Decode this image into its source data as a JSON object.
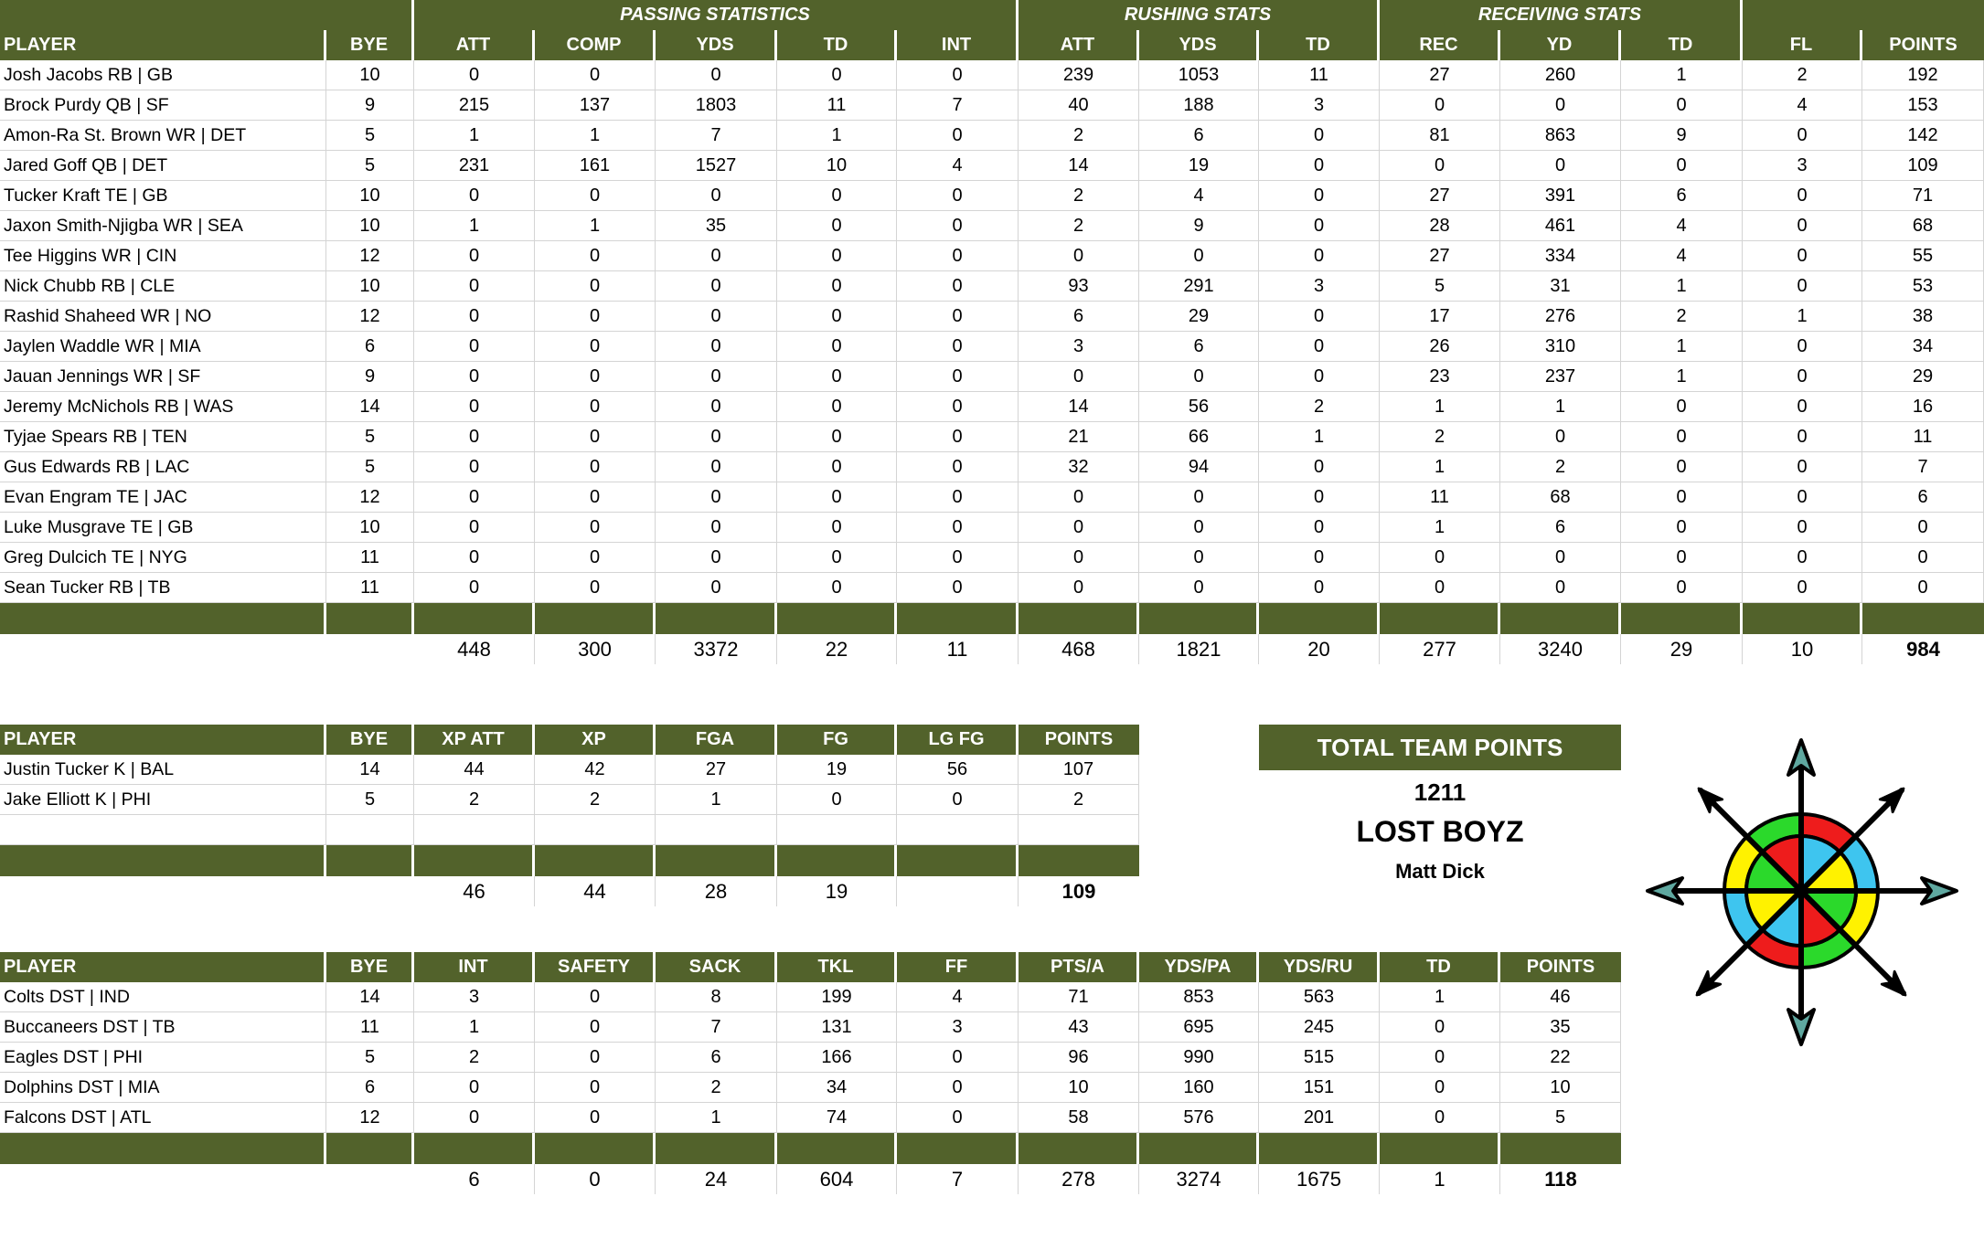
{
  "offense": {
    "group_headers": {
      "passing": "PASSING STATISTICS",
      "rushing": "RUSHING STATS",
      "receiving": "RECEIVING STATS"
    },
    "columns": [
      "PLAYER",
      "BYE",
      "ATT",
      "COMP",
      "YDS",
      "TD",
      "INT",
      "ATT",
      "YDS",
      "TD",
      "REC",
      "YD",
      "TD",
      "FL",
      "POINTS"
    ],
    "rows": [
      [
        "Josh Jacobs RB | GB",
        "10",
        "0",
        "0",
        "0",
        "0",
        "0",
        "239",
        "1053",
        "11",
        "27",
        "260",
        "1",
        "2",
        "192"
      ],
      [
        "Brock Purdy QB | SF",
        "9",
        "215",
        "137",
        "1803",
        "11",
        "7",
        "40",
        "188",
        "3",
        "0",
        "0",
        "0",
        "4",
        "153"
      ],
      [
        "Amon-Ra St. Brown WR | DET",
        "5",
        "1",
        "1",
        "7",
        "1",
        "0",
        "2",
        "6",
        "0",
        "81",
        "863",
        "9",
        "0",
        "142"
      ],
      [
        "Jared Goff QB | DET",
        "5",
        "231",
        "161",
        "1527",
        "10",
        "4",
        "14",
        "19",
        "0",
        "0",
        "0",
        "0",
        "3",
        "109"
      ],
      [
        "Tucker Kraft TE | GB",
        "10",
        "0",
        "0",
        "0",
        "0",
        "0",
        "2",
        "4",
        "0",
        "27",
        "391",
        "6",
        "0",
        "71"
      ],
      [
        "Jaxon Smith-Njigba WR | SEA",
        "10",
        "1",
        "1",
        "35",
        "0",
        "0",
        "2",
        "9",
        "0",
        "28",
        "461",
        "4",
        "0",
        "68"
      ],
      [
        "Tee Higgins WR | CIN",
        "12",
        "0",
        "0",
        "0",
        "0",
        "0",
        "0",
        "0",
        "0",
        "27",
        "334",
        "4",
        "0",
        "55"
      ],
      [
        "Nick Chubb RB | CLE",
        "10",
        "0",
        "0",
        "0",
        "0",
        "0",
        "93",
        "291",
        "3",
        "5",
        "31",
        "1",
        "0",
        "53"
      ],
      [
        "Rashid Shaheed WR | NO",
        "12",
        "0",
        "0",
        "0",
        "0",
        "0",
        "6",
        "29",
        "0",
        "17",
        "276",
        "2",
        "1",
        "38"
      ],
      [
        "Jaylen Waddle WR | MIA",
        "6",
        "0",
        "0",
        "0",
        "0",
        "0",
        "3",
        "6",
        "0",
        "26",
        "310",
        "1",
        "0",
        "34"
      ],
      [
        "Jauan Jennings WR | SF",
        "9",
        "0",
        "0",
        "0",
        "0",
        "0",
        "0",
        "0",
        "0",
        "23",
        "237",
        "1",
        "0",
        "29"
      ],
      [
        "Jeremy McNichols RB | WAS",
        "14",
        "0",
        "0",
        "0",
        "0",
        "0",
        "14",
        "56",
        "2",
        "1",
        "1",
        "0",
        "0",
        "16"
      ],
      [
        "Tyjae Spears RB | TEN",
        "5",
        "0",
        "0",
        "0",
        "0",
        "0",
        "21",
        "66",
        "1",
        "2",
        "0",
        "0",
        "0",
        "11"
      ],
      [
        "Gus Edwards RB | LAC",
        "5",
        "0",
        "0",
        "0",
        "0",
        "0",
        "32",
        "94",
        "0",
        "1",
        "2",
        "0",
        "0",
        "7"
      ],
      [
        "Evan Engram TE | JAC",
        "12",
        "0",
        "0",
        "0",
        "0",
        "0",
        "0",
        "0",
        "0",
        "11",
        "68",
        "0",
        "0",
        "6"
      ],
      [
        "Luke Musgrave TE | GB",
        "10",
        "0",
        "0",
        "0",
        "0",
        "0",
        "0",
        "0",
        "0",
        "1",
        "6",
        "0",
        "0",
        "0"
      ],
      [
        "Greg Dulcich TE | NYG",
        "11",
        "0",
        "0",
        "0",
        "0",
        "0",
        "0",
        "0",
        "0",
        "0",
        "0",
        "0",
        "0",
        "0"
      ],
      [
        "Sean Tucker RB | TB",
        "11",
        "0",
        "0",
        "0",
        "0",
        "0",
        "0",
        "0",
        "0",
        "0",
        "0",
        "0",
        "0",
        "0"
      ]
    ],
    "totals": [
      "",
      "",
      "448",
      "300",
      "3372",
      "22",
      "11",
      "468",
      "1821",
      "20",
      "277",
      "3240",
      "29",
      "10",
      "984"
    ]
  },
  "kickers": {
    "columns": [
      "PLAYER",
      "BYE",
      "XP ATT",
      "XP",
      "FGA",
      "FG",
      "LG FG",
      "POINTS"
    ],
    "rows": [
      [
        "Justin Tucker K | BAL",
        "14",
        "44",
        "42",
        "27",
        "19",
        "56",
        "107"
      ],
      [
        "Jake Elliott K | PHI",
        "5",
        "2",
        "2",
        "1",
        "0",
        "0",
        "2"
      ],
      [
        "",
        "",
        "",
        "",
        "",
        "",
        "",
        ""
      ]
    ],
    "totals": [
      "",
      "",
      "46",
      "44",
      "28",
      "19",
      "",
      "109"
    ]
  },
  "defense": {
    "columns": [
      "PLAYER",
      "BYE",
      "INT",
      "SAFETY",
      "SACK",
      "TKL",
      "FF",
      "PTS/A",
      "YDS/PA",
      "YDS/RU",
      "TD",
      "POINTS"
    ],
    "rows": [
      [
        "Colts DST | IND",
        "14",
        "3",
        "0",
        "8",
        "199",
        "4",
        "71",
        "853",
        "563",
        "1",
        "46"
      ],
      [
        "Buccaneers DST | TB",
        "11",
        "1",
        "0",
        "7",
        "131",
        "3",
        "43",
        "695",
        "245",
        "0",
        "35"
      ],
      [
        "Eagles DST | PHI",
        "5",
        "2",
        "0",
        "6",
        "166",
        "0",
        "96",
        "990",
        "515",
        "0",
        "22"
      ],
      [
        "Dolphins DST | MIA",
        "6",
        "0",
        "0",
        "2",
        "34",
        "0",
        "10",
        "160",
        "151",
        "0",
        "10"
      ],
      [
        "Falcons DST | ATL",
        "12",
        "0",
        "0",
        "1",
        "74",
        "0",
        "58",
        "576",
        "201",
        "0",
        "5"
      ]
    ],
    "totals": [
      "",
      "",
      "6",
      "0",
      "24",
      "604",
      "7",
      "278",
      "3274",
      "1675",
      "1",
      "118"
    ]
  },
  "team": {
    "header": "TOTAL TEAM POINTS",
    "total_points": "1211",
    "team_name": "LOST BOYZ",
    "owner": "Matt Dick",
    "logo_icon": "compass-rose-icon"
  },
  "colors": {
    "header_green": "#52622b",
    "compass_red": "#ee1c1c",
    "compass_green": "#2bd92b",
    "compass_blue": "#3ec5ef",
    "compass_yellow": "#fff200",
    "arrow_teal": "#5fa8a0"
  }
}
